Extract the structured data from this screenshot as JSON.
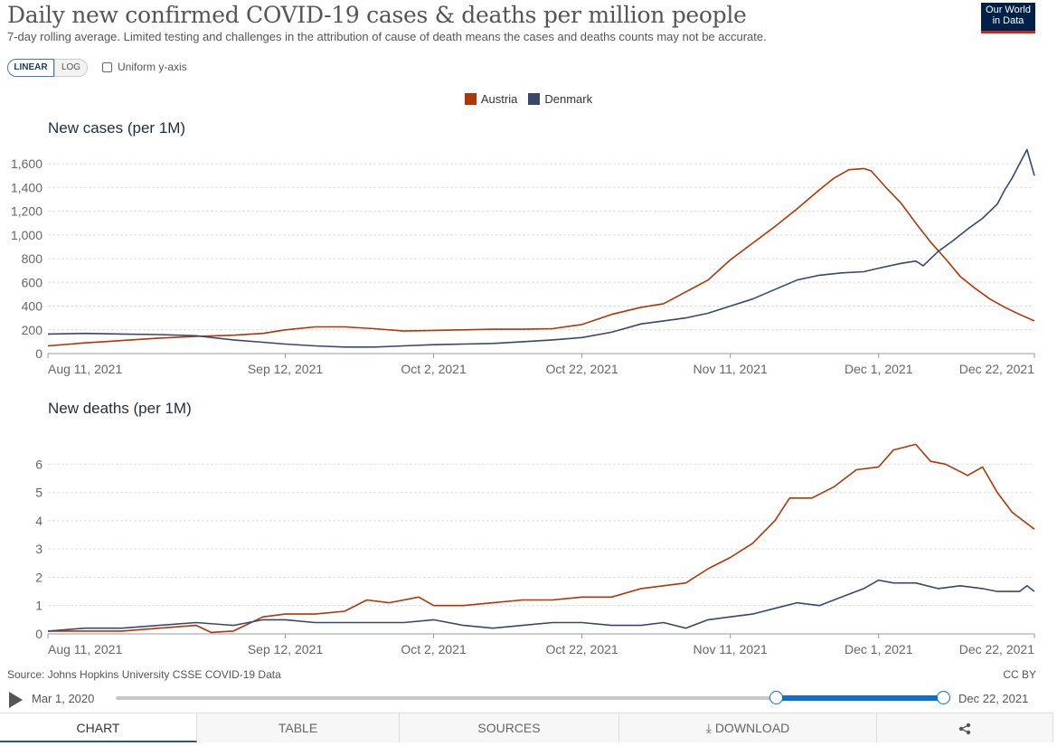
{
  "header": {
    "title": "Daily new confirmed COVID-19 cases & deaths per million people",
    "subtitle": "7-day rolling average. Limited testing and challenges in the attribution of cause of death means the cases and deaths counts may not be accurate.",
    "logo": "Our World in Data"
  },
  "controls": {
    "linear_label": "LINEAR",
    "log_label": "LOG",
    "uniform_label": "Uniform y-axis",
    "uniform_checked": false
  },
  "legend": [
    {
      "name": "Austria",
      "color": "#b13507"
    },
    {
      "name": "Denmark",
      "color": "#38476b"
    }
  ],
  "footer": {
    "source": "Source: Johns Hopkins University CSSE COVID-19 Data",
    "license": "CC BY"
  },
  "timeline": {
    "start_label": "Mar 1, 2020",
    "end_label": "Dec 22, 2021",
    "selected_start_fraction": 0.8,
    "selected_end_fraction": 1.0
  },
  "tabs": [
    {
      "label": "CHART",
      "active": true
    },
    {
      "label": "TABLE",
      "active": false
    },
    {
      "label": "SOURCES",
      "active": false
    },
    {
      "label": "DOWNLOAD",
      "active": false
    },
    {
      "label": "",
      "icon": "share-icon",
      "active": false
    }
  ],
  "chart_data": [
    {
      "type": "line",
      "title": "New cases (per 1M)",
      "xlabel": "",
      "ylabel": "",
      "ylim": [
        0,
        1700
      ],
      "yticks": [
        0,
        200,
        400,
        600,
        800,
        1000,
        1200,
        1400,
        1600
      ],
      "ytick_labels": [
        "0",
        "200",
        "400",
        "600",
        "800",
        "1,000",
        "1,200",
        "1,400",
        "1,600"
      ],
      "x_range": [
        "2021-08-11",
        "2021-12-22"
      ],
      "xticks": [
        "2021-08-11",
        "2021-09-12",
        "2021-10-02",
        "2021-10-22",
        "2021-11-11",
        "2021-12-01",
        "2021-12-22"
      ],
      "xtick_labels": [
        "Aug 11, 2021",
        "Sep 12, 2021",
        "Oct 2, 2021",
        "Oct 22, 2021",
        "Nov 11, 2021",
        "Dec 1, 2021",
        "Dec 22, 2021"
      ],
      "grid": true,
      "series": [
        {
          "name": "Austria",
          "color": "#b13507",
          "points": [
            [
              "2021-08-11",
              65
            ],
            [
              "2021-08-16",
              90
            ],
            [
              "2021-08-21",
              110
            ],
            [
              "2021-08-26",
              130
            ],
            [
              "2021-08-31",
              145
            ],
            [
              "2021-09-05",
              155
            ],
            [
              "2021-09-09",
              170
            ],
            [
              "2021-09-12",
              200
            ],
            [
              "2021-09-16",
              225
            ],
            [
              "2021-09-20",
              225
            ],
            [
              "2021-09-24",
              210
            ],
            [
              "2021-09-28",
              190
            ],
            [
              "2021-10-02",
              195
            ],
            [
              "2021-10-06",
              200
            ],
            [
              "2021-10-10",
              205
            ],
            [
              "2021-10-14",
              205
            ],
            [
              "2021-10-18",
              210
            ],
            [
              "2021-10-22",
              245
            ],
            [
              "2021-10-26",
              330
            ],
            [
              "2021-10-30",
              390
            ],
            [
              "2021-11-02",
              420
            ],
            [
              "2021-11-05",
              520
            ],
            [
              "2021-11-08",
              620
            ],
            [
              "2021-11-11",
              790
            ],
            [
              "2021-11-14",
              930
            ],
            [
              "2021-11-17",
              1070
            ],
            [
              "2021-11-20",
              1220
            ],
            [
              "2021-11-23",
              1380
            ],
            [
              "2021-11-25",
              1480
            ],
            [
              "2021-11-27",
              1550
            ],
            [
              "2021-11-29",
              1560
            ],
            [
              "2021-11-30",
              1540
            ],
            [
              "2021-12-02",
              1400
            ],
            [
              "2021-12-04",
              1270
            ],
            [
              "2021-12-06",
              1100
            ],
            [
              "2021-12-08",
              940
            ],
            [
              "2021-12-10",
              800
            ],
            [
              "2021-12-12",
              650
            ],
            [
              "2021-12-14",
              550
            ],
            [
              "2021-12-16",
              460
            ],
            [
              "2021-12-18",
              390
            ],
            [
              "2021-12-20",
              330
            ],
            [
              "2021-12-22",
              275
            ]
          ]
        },
        {
          "name": "Denmark",
          "color": "#38476b",
          "points": [
            [
              "2021-08-11",
              165
            ],
            [
              "2021-08-16",
              170
            ],
            [
              "2021-08-21",
              165
            ],
            [
              "2021-08-26",
              160
            ],
            [
              "2021-08-31",
              150
            ],
            [
              "2021-09-05",
              115
            ],
            [
              "2021-09-09",
              95
            ],
            [
              "2021-09-12",
              80
            ],
            [
              "2021-09-16",
              65
            ],
            [
              "2021-09-20",
              55
            ],
            [
              "2021-09-24",
              55
            ],
            [
              "2021-09-28",
              65
            ],
            [
              "2021-10-02",
              75
            ],
            [
              "2021-10-06",
              80
            ],
            [
              "2021-10-10",
              85
            ],
            [
              "2021-10-14",
              100
            ],
            [
              "2021-10-18",
              115
            ],
            [
              "2021-10-22",
              135
            ],
            [
              "2021-10-26",
              180
            ],
            [
              "2021-10-30",
              250
            ],
            [
              "2021-11-02",
              275
            ],
            [
              "2021-11-05",
              300
            ],
            [
              "2021-11-08",
              340
            ],
            [
              "2021-11-11",
              400
            ],
            [
              "2021-11-14",
              460
            ],
            [
              "2021-11-17",
              540
            ],
            [
              "2021-11-20",
              620
            ],
            [
              "2021-11-23",
              660
            ],
            [
              "2021-11-26",
              680
            ],
            [
              "2021-11-29",
              690
            ],
            [
              "2021-12-01",
              720
            ],
            [
              "2021-12-04",
              760
            ],
            [
              "2021-12-06",
              780
            ],
            [
              "2021-12-07",
              740
            ],
            [
              "2021-12-09",
              860
            ],
            [
              "2021-12-11",
              950
            ],
            [
              "2021-12-13",
              1050
            ],
            [
              "2021-12-15",
              1140
            ],
            [
              "2021-12-17",
              1260
            ],
            [
              "2021-12-18",
              1380
            ],
            [
              "2021-12-19",
              1480
            ],
            [
              "2021-12-21",
              1720
            ],
            [
              "2021-12-22",
              1500
            ]
          ]
        }
      ]
    },
    {
      "type": "line",
      "title": "New deaths (per 1M)",
      "xlabel": "",
      "ylabel": "",
      "ylim": [
        0,
        7
      ],
      "yticks": [
        0,
        1,
        2,
        3,
        4,
        5,
        6
      ],
      "ytick_labels": [
        "0",
        "1",
        "2",
        "3",
        "4",
        "5",
        "6"
      ],
      "x_range": [
        "2021-08-11",
        "2021-12-22"
      ],
      "xticks": [
        "2021-08-11",
        "2021-09-12",
        "2021-10-02",
        "2021-10-22",
        "2021-11-11",
        "2021-12-01",
        "2021-12-22"
      ],
      "xtick_labels": [
        "Aug 11, 2021",
        "Sep 12, 2021",
        "Oct 2, 2021",
        "Oct 22, 2021",
        "Nov 11, 2021",
        "Dec 1, 2021",
        "Dec 22, 2021"
      ],
      "grid": true,
      "series": [
        {
          "name": "Austria",
          "color": "#b13507",
          "points": [
            [
              "2021-08-11",
              0.1
            ],
            [
              "2021-08-16",
              0.1
            ],
            [
              "2021-08-21",
              0.1
            ],
            [
              "2021-08-26",
              0.2
            ],
            [
              "2021-08-31",
              0.3
            ],
            [
              "2021-09-02",
              0.05
            ],
            [
              "2021-09-05",
              0.1
            ],
            [
              "2021-09-09",
              0.6
            ],
            [
              "2021-09-12",
              0.7
            ],
            [
              "2021-09-16",
              0.7
            ],
            [
              "2021-09-20",
              0.8
            ],
            [
              "2021-09-23",
              1.2
            ],
            [
              "2021-09-26",
              1.1
            ],
            [
              "2021-09-30",
              1.3
            ],
            [
              "2021-10-02",
              1.0
            ],
            [
              "2021-10-06",
              1.0
            ],
            [
              "2021-10-10",
              1.1
            ],
            [
              "2021-10-14",
              1.2
            ],
            [
              "2021-10-18",
              1.2
            ],
            [
              "2021-10-22",
              1.3
            ],
            [
              "2021-10-26",
              1.3
            ],
            [
              "2021-10-30",
              1.6
            ],
            [
              "2021-11-02",
              1.7
            ],
            [
              "2021-11-05",
              1.8
            ],
            [
              "2021-11-08",
              2.3
            ],
            [
              "2021-11-11",
              2.7
            ],
            [
              "2021-11-14",
              3.2
            ],
            [
              "2021-11-17",
              4.0
            ],
            [
              "2021-11-19",
              4.8
            ],
            [
              "2021-11-22",
              4.8
            ],
            [
              "2021-11-25",
              5.2
            ],
            [
              "2021-11-28",
              5.8
            ],
            [
              "2021-12-01",
              5.9
            ],
            [
              "2021-12-03",
              6.5
            ],
            [
              "2021-12-06",
              6.7
            ],
            [
              "2021-12-08",
              6.1
            ],
            [
              "2021-12-10",
              6.0
            ],
            [
              "2021-12-13",
              5.6
            ],
            [
              "2021-12-15",
              5.9
            ],
            [
              "2021-12-17",
              5.0
            ],
            [
              "2021-12-19",
              4.3
            ],
            [
              "2021-12-22",
              3.7
            ]
          ]
        },
        {
          "name": "Denmark",
          "color": "#38476b",
          "points": [
            [
              "2021-08-11",
              0.1
            ],
            [
              "2021-08-16",
              0.2
            ],
            [
              "2021-08-21",
              0.2
            ],
            [
              "2021-08-26",
              0.3
            ],
            [
              "2021-08-31",
              0.4
            ],
            [
              "2021-09-05",
              0.3
            ],
            [
              "2021-09-09",
              0.5
            ],
            [
              "2021-09-12",
              0.5
            ],
            [
              "2021-09-16",
              0.4
            ],
            [
              "2021-09-20",
              0.4
            ],
            [
              "2021-09-24",
              0.4
            ],
            [
              "2021-09-28",
              0.4
            ],
            [
              "2021-10-02",
              0.5
            ],
            [
              "2021-10-06",
              0.3
            ],
            [
              "2021-10-10",
              0.2
            ],
            [
              "2021-10-14",
              0.3
            ],
            [
              "2021-10-18",
              0.4
            ],
            [
              "2021-10-22",
              0.4
            ],
            [
              "2021-10-26",
              0.3
            ],
            [
              "2021-10-30",
              0.3
            ],
            [
              "2021-11-02",
              0.4
            ],
            [
              "2021-11-05",
              0.2
            ],
            [
              "2021-11-08",
              0.5
            ],
            [
              "2021-11-11",
              0.6
            ],
            [
              "2021-11-14",
              0.7
            ],
            [
              "2021-11-17",
              0.9
            ],
            [
              "2021-11-20",
              1.1
            ],
            [
              "2021-11-23",
              1.0
            ],
            [
              "2021-11-26",
              1.3
            ],
            [
              "2021-11-29",
              1.6
            ],
            [
              "2021-12-01",
              1.9
            ],
            [
              "2021-12-03",
              1.8
            ],
            [
              "2021-12-06",
              1.8
            ],
            [
              "2021-12-09",
              1.6
            ],
            [
              "2021-12-12",
              1.7
            ],
            [
              "2021-12-15",
              1.6
            ],
            [
              "2021-12-17",
              1.5
            ],
            [
              "2021-12-20",
              1.5
            ],
            [
              "2021-12-21",
              1.7
            ],
            [
              "2021-12-22",
              1.5
            ]
          ]
        }
      ]
    }
  ]
}
